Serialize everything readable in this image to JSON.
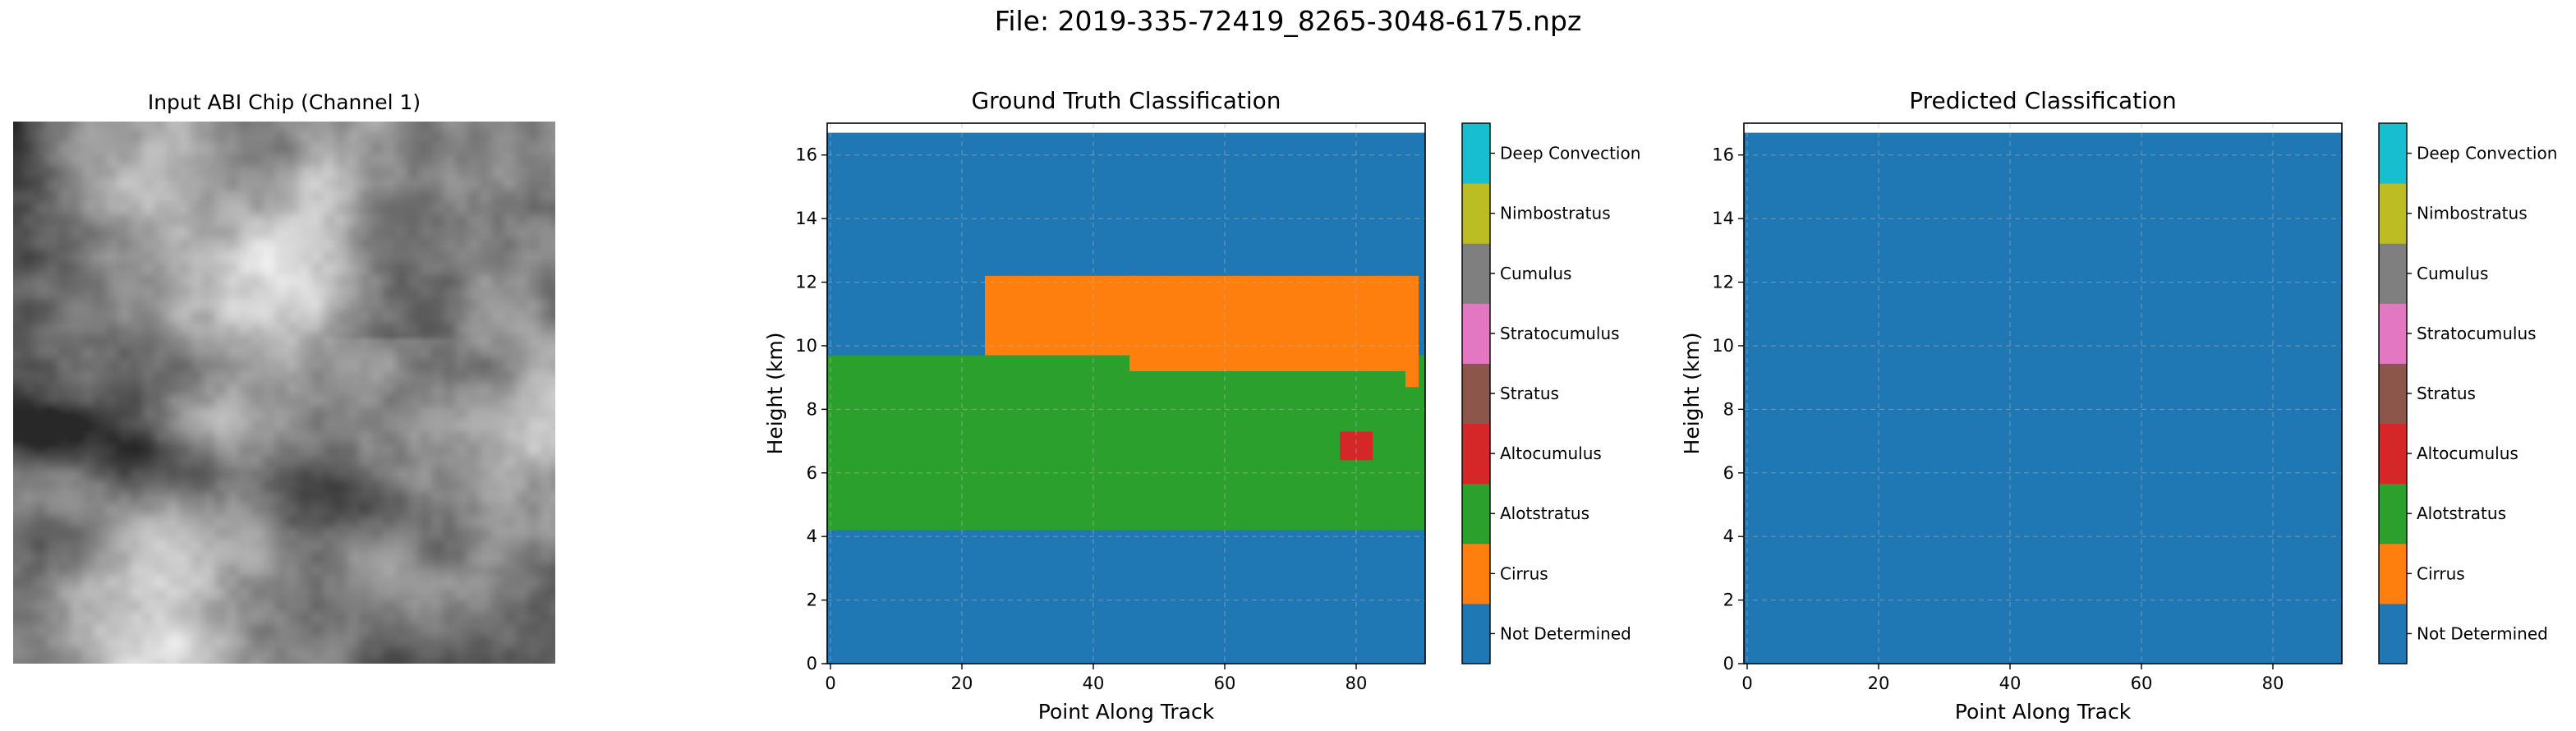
{
  "figure": {
    "suptitle": "File: 2019-335-72419_8265-3048-6175.npz"
  },
  "panels": {
    "input": {
      "title": "Input ABI Chip (Channel 1)"
    },
    "truth": {
      "title": "Ground Truth Classification"
    },
    "pred": {
      "title": "Predicted Classification"
    }
  },
  "colors": {
    "background": "#ffffff",
    "grid": "#b0b0b0"
  },
  "chart_data": [
    {
      "type": "heatmap",
      "panel": "truth",
      "title": "Ground Truth Classification",
      "xlabel": "Point Along Track",
      "ylabel": "Height (km)",
      "xlim": [
        -0.5,
        90.5
      ],
      "ylim": [
        0,
        17
      ],
      "xticks": [
        0,
        20,
        40,
        60,
        80
      ],
      "yticks": [
        0,
        2,
        4,
        6,
        8,
        10,
        12,
        14,
        16
      ],
      "grid": true,
      "data_top_km": 16.7,
      "background_class": "Not Determined",
      "regions": [
        {
          "class": "Alotstratus",
          "x": [
            0,
            90
          ],
          "y": [
            4.2,
            9.7
          ]
        },
        {
          "class": "Cirrus",
          "x": [
            24,
            46
          ],
          "y": [
            9.7,
            12.2
          ]
        },
        {
          "class": "Cirrus",
          "x": [
            46,
            87
          ],
          "y": [
            9.2,
            12.2
          ]
        },
        {
          "class": "Cirrus",
          "x": [
            88,
            89
          ],
          "y": [
            8.7,
            12.2
          ]
        },
        {
          "class": "Altocumulus",
          "x": [
            78,
            82
          ],
          "y": [
            6.4,
            7.3
          ]
        }
      ]
    },
    {
      "type": "heatmap",
      "panel": "pred",
      "title": "Predicted Classification",
      "xlabel": "Point Along Track",
      "ylabel": "Height (km)",
      "xlim": [
        -0.5,
        90.5
      ],
      "ylim": [
        0,
        17
      ],
      "xticks": [
        0,
        20,
        40,
        60,
        80
      ],
      "yticks": [
        0,
        2,
        4,
        6,
        8,
        10,
        12,
        14,
        16
      ],
      "grid": true,
      "data_top_km": 16.7,
      "background_class": "Not Determined",
      "regions": []
    }
  ],
  "colorbar": {
    "classes": [
      {
        "label": "Not Determined",
        "color": "#1f77b4"
      },
      {
        "label": "Cirrus",
        "color": "#ff7f0e"
      },
      {
        "label": "Alotstratus",
        "color": "#2ca02c"
      },
      {
        "label": "Altocumulus",
        "color": "#d62728"
      },
      {
        "label": "Stratus",
        "color": "#8c564b"
      },
      {
        "label": "Stratocumulus",
        "color": "#e377c2"
      },
      {
        "label": "Cumulus",
        "color": "#7f7f7f"
      },
      {
        "label": "Nimbostratus",
        "color": "#bcbd22"
      },
      {
        "label": "Deep Convection",
        "color": "#17becf"
      }
    ]
  }
}
